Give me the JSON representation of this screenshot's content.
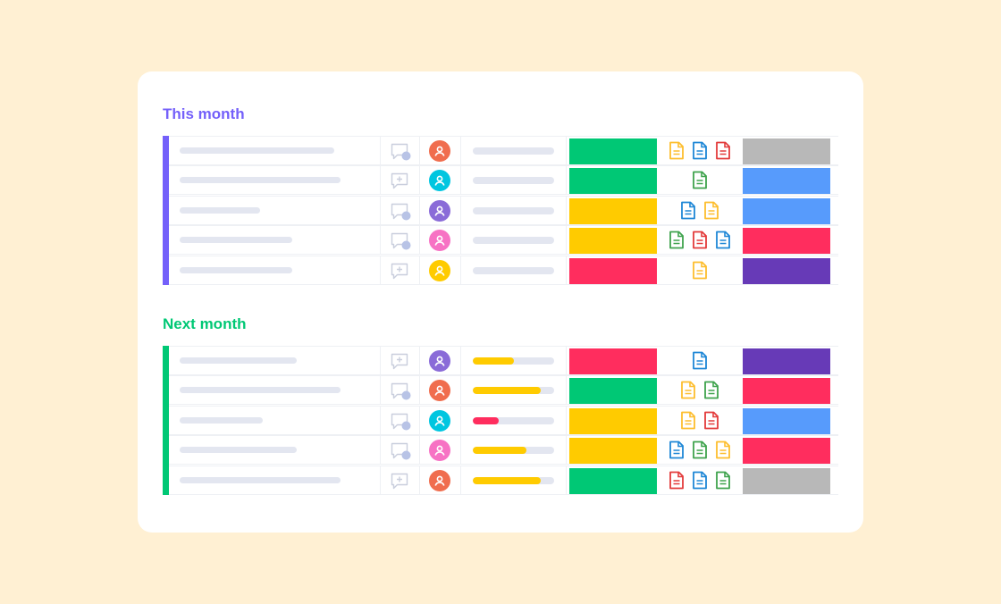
{
  "colors": {
    "green": "#00C875",
    "yellow": "#FFCB00",
    "red": "#FF2D5E",
    "purple": "#673AB7",
    "blue": "#579BFC",
    "grey": "#B8B8B8",
    "doc_yellow": "#FDBE2E",
    "doc_blue": "#1E87D6",
    "doc_red": "#E33B3B",
    "doc_green": "#3FA34D"
  },
  "groups": [
    {
      "title": "This month",
      "color": "#7460FA",
      "rows": [
        {
          "name_w": 173,
          "update": "bubble-dot",
          "avatar": "#F06D4E",
          "progress": 0,
          "progress_color": "",
          "status": "#00C875",
          "files": [
            "doc_yellow",
            "doc_blue",
            "doc_red"
          ],
          "tag": "#B8B8B8"
        },
        {
          "name_w": 180,
          "update": "bubble-plus",
          "avatar": "#00C6E0",
          "progress": 0,
          "progress_color": "",
          "status": "#00C875",
          "files": [
            "doc_green"
          ],
          "tag": "#579BFC"
        },
        {
          "name_w": 90,
          "update": "bubble-dot",
          "avatar": "#8A6BD8",
          "progress": 0,
          "progress_color": "",
          "status": "#FFCB00",
          "files": [
            "doc_blue",
            "doc_yellow"
          ],
          "tag": "#579BFC"
        },
        {
          "name_w": 126,
          "update": "bubble-dot",
          "avatar": "#F772C4",
          "progress": 0,
          "progress_color": "",
          "status": "#FFCB00",
          "files": [
            "doc_green",
            "doc_red",
            "doc_blue"
          ],
          "tag": "#FF2D5E"
        },
        {
          "name_w": 126,
          "update": "bubble-plus",
          "avatar": "#FFCB00",
          "progress": 0,
          "progress_color": "",
          "status": "#FF2D5E",
          "files": [
            "doc_yellow"
          ],
          "tag": "#673AB7"
        }
      ]
    },
    {
      "title": "Next month",
      "color": "#00C875",
      "rows": [
        {
          "name_w": 131,
          "update": "bubble-plus",
          "avatar": "#8A6BD8",
          "progress": 0.5,
          "progress_color": "#FFCB00",
          "status": "#FF2D5E",
          "files": [
            "doc_blue"
          ],
          "tag": "#673AB7"
        },
        {
          "name_w": 180,
          "update": "bubble-dot",
          "avatar": "#F06D4E",
          "progress": 0.84,
          "progress_color": "#FFCB00",
          "status": "#00C875",
          "files": [
            "doc_yellow",
            "doc_green"
          ],
          "tag": "#FF2D5E"
        },
        {
          "name_w": 93,
          "update": "bubble-dot",
          "avatar": "#00C6E0",
          "progress": 0.32,
          "progress_color": "#FF2D5E",
          "status": "#FFCB00",
          "files": [
            "doc_yellow",
            "doc_red"
          ],
          "tag": "#579BFC"
        },
        {
          "name_w": 131,
          "update": "bubble-dot",
          "avatar": "#F772C4",
          "progress": 0.66,
          "progress_color": "#FFCB00",
          "status": "#FFCB00",
          "files": [
            "doc_blue",
            "doc_green",
            "doc_yellow"
          ],
          "tag": "#FF2D5E"
        },
        {
          "name_w": 180,
          "update": "bubble-plus",
          "avatar": "#F06D4E",
          "progress": 0.84,
          "progress_color": "#FFCB00",
          "status": "#00C875",
          "files": [
            "doc_red",
            "doc_blue",
            "doc_green"
          ],
          "tag": "#B8B8B8"
        }
      ]
    }
  ]
}
